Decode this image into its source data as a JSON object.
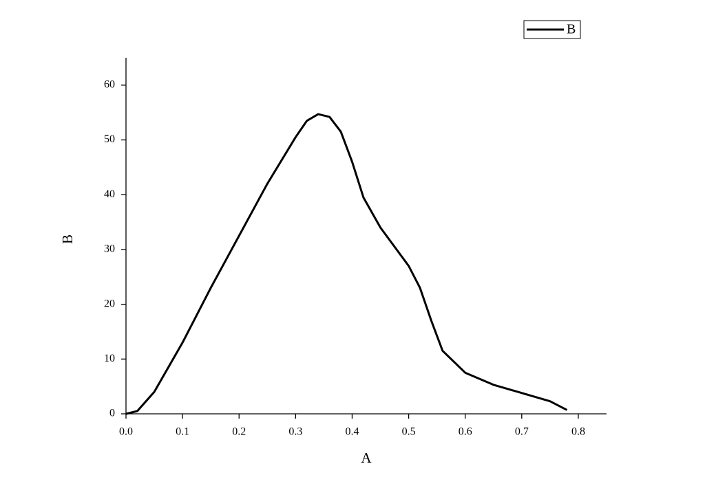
{
  "chart_data": {
    "type": "line",
    "x_label": "A",
    "y_label": "B",
    "x": [
      0,
      0.02,
      0.05,
      0.1,
      0.15,
      0.2,
      0.25,
      0.3,
      0.32,
      0.34,
      0.36,
      0.38,
      0.4,
      0.42,
      0.45,
      0.5,
      0.52,
      0.54,
      0.56,
      0.6,
      0.65,
      0.7,
      0.75,
      0.78
    ],
    "series": [
      {
        "name": "B",
        "color": "#000000",
        "values": [
          0,
          0.5,
          4,
          13,
          23,
          32.5,
          42,
          50.5,
          53.5,
          54.7,
          54.2,
          51.5,
          46,
          39.5,
          34,
          27,
          23,
          17,
          11.5,
          7.5,
          5.3,
          3.8,
          2.3,
          0.7
        ]
      }
    ],
    "xlim": [
      0,
      0.85
    ],
    "ylim": [
      0,
      65
    ],
    "xticks": [
      {
        "value": 0,
        "label": "0.0"
      },
      0.1,
      0.2,
      0.3,
      0.4,
      0.5,
      0.6,
      0.7,
      0.8
    ],
    "yticks": [
      0,
      10,
      20,
      30,
      40,
      50,
      60
    ],
    "grid": false,
    "legend": "upper right"
  }
}
